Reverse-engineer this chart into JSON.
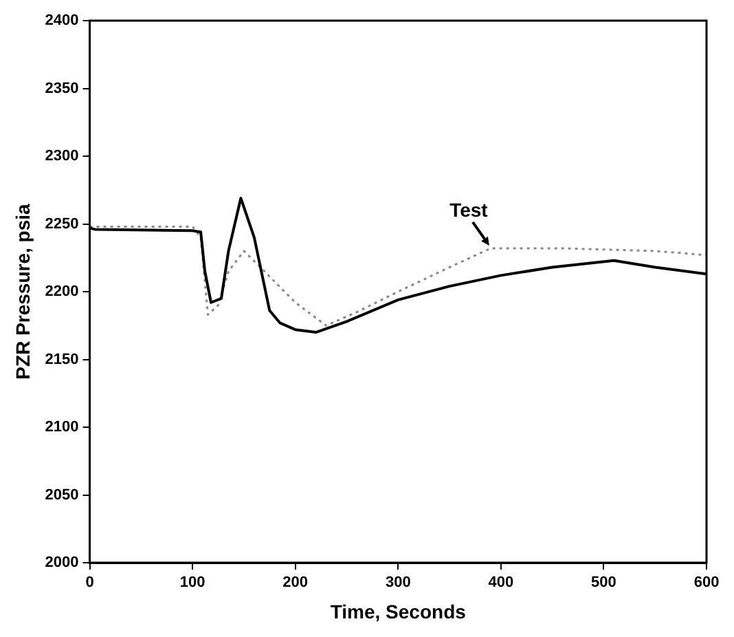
{
  "chart_data": {
    "type": "line",
    "xlabel": "Time, Seconds",
    "ylabel": "PZR Pressure, psia",
    "xlim": [
      0,
      600
    ],
    "xticks": [
      0,
      100,
      200,
      300,
      400,
      500,
      600
    ],
    "ylim": [
      2000,
      2400
    ],
    "yticks": [
      2000,
      2050,
      2100,
      2150,
      2200,
      2250,
      2300,
      2350,
      2400
    ],
    "grid": false,
    "legend": false,
    "marker": "none",
    "series": [
      {
        "color": "#000000",
        "line_style": "solid",
        "x": [
          0,
          5,
          100,
          108,
          112,
          118,
          128,
          135,
          147,
          160,
          175,
          185,
          200,
          220,
          250,
          300,
          350,
          400,
          450,
          510,
          550,
          600
        ],
        "values": [
          2247,
          2246,
          2245,
          2244,
          2215,
          2192,
          2195,
          2230,
          2269,
          2240,
          2186,
          2177,
          2172,
          2170,
          2178,
          2194,
          2204,
          2212,
          2218,
          2223,
          2218,
          2213
        ]
      },
      {
        "color": "#888888",
        "line_style": "dotted",
        "x": [
          0,
          100,
          108,
          115,
          125,
          135,
          150,
          170,
          200,
          230,
          260,
          300,
          350,
          390,
          460,
          550,
          600
        ],
        "values": [
          2248,
          2248,
          2240,
          2183,
          2190,
          2215,
          2230,
          2215,
          2192,
          2175,
          2185,
          2200,
          2218,
          2232,
          2232,
          2230,
          2227
        ]
      }
    ],
    "annotations": [
      {
        "text": "Test",
        "x": 390,
        "y": 2232
      }
    ]
  }
}
